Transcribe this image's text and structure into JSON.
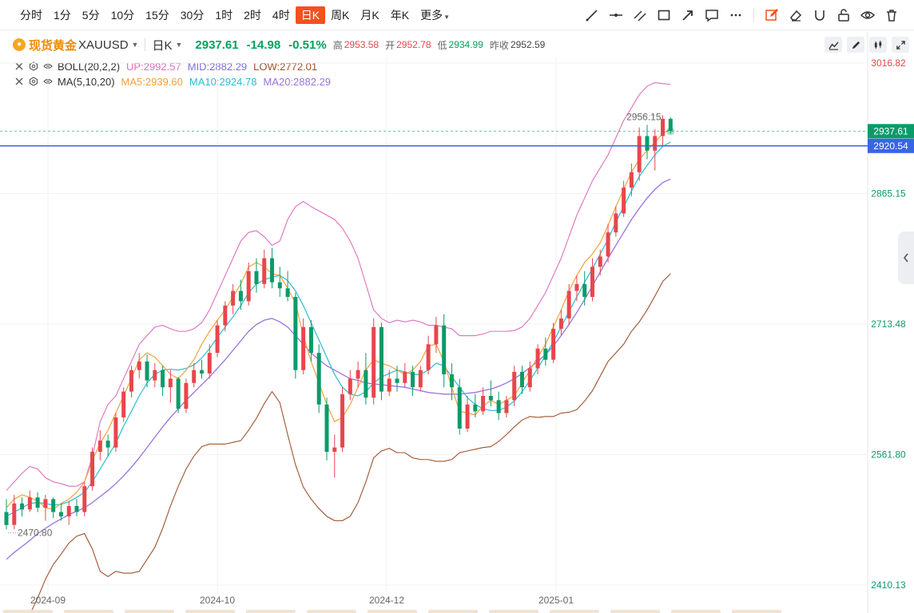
{
  "toolbar": {
    "periods": [
      "分时",
      "1分",
      "5分",
      "10分",
      "15分",
      "30分",
      "1时",
      "2时",
      "4时",
      "日K",
      "周K",
      "月K",
      "年K"
    ],
    "active_period": "日K",
    "more_label": "更多",
    "accent": "#f4511e",
    "tools": [
      "line-draw-icon",
      "horizontal-line-icon",
      "parallel-lines-icon",
      "rectangle-icon",
      "arrow-icon",
      "comment-icon",
      "more-dots-icon",
      "pencil-edit-icon",
      "eraser-icon",
      "magnet-icon",
      "unlock-icon",
      "eye-icon",
      "trash-icon"
    ]
  },
  "symbol": {
    "name": "现货黄金",
    "code": "XAUUSD",
    "period": "日K",
    "price": "2937.61",
    "change": "-14.98",
    "change_pct": "-0.51%",
    "high_label": "高",
    "high": "2953.58",
    "open_label": "开",
    "open": "2952.78",
    "low_label": "低",
    "low": "2934.99",
    "prev_close_label": "昨收",
    "prev_close": "2952.59"
  },
  "indicators": {
    "boll": {
      "name": "BOLL(20,2,2)",
      "up": "UP:2992.57",
      "mid": "MID:2882.29",
      "low": "LOW:2772.01",
      "color_up": "#dd6fc1",
      "color_mid": "#7b6fd8",
      "color_low": "#a0522d"
    },
    "ma": {
      "name": "MA(5,10,20)",
      "ma5": "MA5:2939.60",
      "ma10": "MA10:2924.78",
      "ma20": "MA20:2882.29",
      "color_ma5": "#f5a13c",
      "color_ma10": "#2bbcd4",
      "color_ma20": "#9b72e0"
    }
  },
  "chart_data": {
    "type": "candlestick",
    "price_axis_ticks": [
      "3016.82",
      "2865.15",
      "2713.48",
      "2561.80",
      "2410.13"
    ],
    "time_axis_ticks": [
      "2024-09",
      "2024-10",
      "2024-12",
      "2025-01"
    ],
    "ylim": [
      2410.13,
      3016.82
    ],
    "last_price": "2937.61",
    "marked_line": "2920.54",
    "max_label": "2956.15",
    "min_label": "2470.80",
    "colors": {
      "up": "#e8464c",
      "down": "#0a9b69",
      "last_price_bg": "#0a9b69",
      "marked_line": "#3a64e8"
    },
    "ma5": [
      2500,
      2510,
      2515,
      2512,
      2508,
      2500,
      2498,
      2505,
      2510,
      2518,
      2530,
      2555,
      2575,
      2590,
      2610,
      2630,
      2650,
      2672,
      2680,
      2675,
      2665,
      2655,
      2650,
      2660,
      2672,
      2690,
      2705,
      2718,
      2730,
      2745,
      2760,
      2780,
      2785,
      2780,
      2772,
      2770,
      2755,
      2738,
      2700,
      2670,
      2645,
      2620,
      2600,
      2605,
      2620,
      2640,
      2660,
      2672,
      2668,
      2665,
      2660,
      2655,
      2660,
      2670,
      2688,
      2690,
      2670,
      2640,
      2612,
      2610,
      2608,
      2618,
      2625,
      2620,
      2625,
      2630,
      2645,
      2660,
      2675,
      2690,
      2710,
      2730,
      2752,
      2770,
      2785,
      2795,
      2808,
      2828,
      2850,
      2870,
      2890,
      2905,
      2915,
      2925,
      2935,
      2940
    ],
    "ma10": [
      2490,
      2495,
      2500,
      2505,
      2506,
      2505,
      2503,
      2504,
      2507,
      2512,
      2518,
      2530,
      2545,
      2560,
      2575,
      2595,
      2612,
      2630,
      2645,
      2655,
      2660,
      2661,
      2660,
      2662,
      2666,
      2674,
      2685,
      2698,
      2710,
      2722,
      2735,
      2750,
      2760,
      2765,
      2768,
      2770,
      2764,
      2752,
      2735,
      2715,
      2695,
      2675,
      2655,
      2640,
      2632,
      2630,
      2635,
      2645,
      2652,
      2656,
      2660,
      2658,
      2655,
      2655,
      2660,
      2668,
      2665,
      2652,
      2640,
      2628,
      2620,
      2615,
      2613,
      2613,
      2617,
      2624,
      2635,
      2648,
      2662,
      2677,
      2693,
      2710,
      2728,
      2745,
      2762,
      2778,
      2795,
      2812,
      2832,
      2850,
      2868,
      2885,
      2898,
      2910,
      2920,
      2925
    ],
    "ma20": [
      2440,
      2448,
      2455,
      2462,
      2470,
      2476,
      2482,
      2487,
      2492,
      2496,
      2500,
      2506,
      2513,
      2520,
      2528,
      2537,
      2547,
      2558,
      2570,
      2582,
      2594,
      2605,
      2615,
      2625,
      2634,
      2643,
      2652,
      2662,
      2672,
      2683,
      2694,
      2705,
      2713,
      2718,
      2720,
      2716,
      2710,
      2700,
      2690,
      2680,
      2672,
      2665,
      2660,
      2655,
      2650,
      2648,
      2645,
      2644,
      2643,
      2642,
      2641,
      2640,
      2638,
      2636,
      2634,
      2633,
      2632,
      2632,
      2632,
      2633,
      2634,
      2636,
      2638,
      2641,
      2645,
      2650,
      2656,
      2663,
      2670,
      2678,
      2688,
      2700,
      2713,
      2727,
      2742,
      2758,
      2774,
      2790,
      2805,
      2820,
      2835,
      2848,
      2860,
      2870,
      2878,
      2882
    ],
    "boll_up": [
      2520,
      2530,
      2540,
      2548,
      2545,
      2535,
      2530,
      2528,
      2525,
      2525,
      2530,
      2560,
      2600,
      2620,
      2630,
      2650,
      2670,
      2690,
      2700,
      2710,
      2712,
      2708,
      2705,
      2705,
      2708,
      2715,
      2730,
      2750,
      2770,
      2790,
      2810,
      2820,
      2822,
      2815,
      2805,
      2810,
      2835,
      2850,
      2856,
      2850,
      2845,
      2840,
      2835,
      2825,
      2810,
      2790,
      2760,
      2730,
      2720,
      2715,
      2718,
      2716,
      2718,
      2716,
      2712,
      2712,
      2710,
      2708,
      2700,
      2700,
      2700,
      2702,
      2705,
      2705,
      2705,
      2706,
      2710,
      2720,
      2735,
      2750,
      2770,
      2790,
      2815,
      2840,
      2860,
      2880,
      2895,
      2910,
      2930,
      2950,
      2965,
      2980,
      2990,
      2994,
      2993,
      2992
    ],
    "boll_low": [
      2360,
      2366,
      2370,
      2376,
      2395,
      2417,
      2434,
      2446,
      2459,
      2467,
      2470,
      2452,
      2426,
      2420,
      2426,
      2424,
      2424,
      2426,
      2440,
      2454,
      2476,
      2502,
      2525,
      2545,
      2560,
      2571,
      2574,
      2574,
      2574,
      2576,
      2578,
      2590,
      2604,
      2621,
      2635,
      2622,
      2585,
      2550,
      2524,
      2510,
      2499,
      2490,
      2485,
      2485,
      2490,
      2506,
      2530,
      2558,
      2566,
      2569,
      2564,
      2564,
      2558,
      2556,
      2556,
      2554,
      2554,
      2556,
      2564,
      2566,
      2568,
      2570,
      2571,
      2577,
      2585,
      2594,
      2602,
      2606,
      2605,
      2606,
      2606,
      2610,
      2611,
      2614,
      2624,
      2636,
      2653,
      2670,
      2680,
      2690,
      2705,
      2716,
      2730,
      2746,
      2763,
      2772
    ],
    "candles": [
      {
        "o": 2495,
        "h": 2510,
        "l": 2475,
        "c": 2480
      },
      {
        "o": 2480,
        "h": 2515,
        "l": 2475,
        "c": 2505
      },
      {
        "o": 2505,
        "h": 2512,
        "l": 2490,
        "c": 2498
      },
      {
        "o": 2498,
        "h": 2520,
        "l": 2495,
        "c": 2512
      },
      {
        "o": 2512,
        "h": 2518,
        "l": 2495,
        "c": 2500
      },
      {
        "o": 2500,
        "h": 2515,
        "l": 2485,
        "c": 2510
      },
      {
        "o": 2510,
        "h": 2512,
        "l": 2488,
        "c": 2495
      },
      {
        "o": 2495,
        "h": 2505,
        "l": 2485,
        "c": 2490
      },
      {
        "o": 2490,
        "h": 2508,
        "l": 2480,
        "c": 2502
      },
      {
        "o": 2502,
        "h": 2510,
        "l": 2490,
        "c": 2495
      },
      {
        "o": 2495,
        "h": 2530,
        "l": 2490,
        "c": 2525
      },
      {
        "o": 2525,
        "h": 2570,
        "l": 2520,
        "c": 2565
      },
      {
        "o": 2565,
        "h": 2590,
        "l": 2555,
        "c": 2578
      },
      {
        "o": 2578,
        "h": 2585,
        "l": 2560,
        "c": 2570
      },
      {
        "o": 2570,
        "h": 2610,
        "l": 2565,
        "c": 2605
      },
      {
        "o": 2605,
        "h": 2640,
        "l": 2600,
        "c": 2635
      },
      {
        "o": 2635,
        "h": 2665,
        "l": 2628,
        "c": 2660
      },
      {
        "o": 2660,
        "h": 2680,
        "l": 2650,
        "c": 2670
      },
      {
        "o": 2670,
        "h": 2678,
        "l": 2640,
        "c": 2648
      },
      {
        "o": 2648,
        "h": 2668,
        "l": 2640,
        "c": 2660
      },
      {
        "o": 2660,
        "h": 2665,
        "l": 2630,
        "c": 2640
      },
      {
        "o": 2640,
        "h": 2660,
        "l": 2622,
        "c": 2650
      },
      {
        "o": 2650,
        "h": 2652,
        "l": 2610,
        "c": 2615
      },
      {
        "o": 2615,
        "h": 2650,
        "l": 2610,
        "c": 2645
      },
      {
        "o": 2645,
        "h": 2668,
        "l": 2640,
        "c": 2660
      },
      {
        "o": 2660,
        "h": 2672,
        "l": 2650,
        "c": 2656
      },
      {
        "o": 2656,
        "h": 2690,
        "l": 2650,
        "c": 2680
      },
      {
        "o": 2680,
        "h": 2718,
        "l": 2675,
        "c": 2712
      },
      {
        "o": 2712,
        "h": 2740,
        "l": 2705,
        "c": 2735
      },
      {
        "o": 2735,
        "h": 2760,
        "l": 2725,
        "c": 2752
      },
      {
        "o": 2752,
        "h": 2765,
        "l": 2730,
        "c": 2740
      },
      {
        "o": 2740,
        "h": 2785,
        "l": 2735,
        "c": 2775
      },
      {
        "o": 2775,
        "h": 2790,
        "l": 2750,
        "c": 2760
      },
      {
        "o": 2760,
        "h": 2800,
        "l": 2755,
        "c": 2790
      },
      {
        "o": 2790,
        "h": 2802,
        "l": 2755,
        "c": 2762
      },
      {
        "o": 2762,
        "h": 2780,
        "l": 2745,
        "c": 2755
      },
      {
        "o": 2755,
        "h": 2775,
        "l": 2740,
        "c": 2745
      },
      {
        "o": 2745,
        "h": 2750,
        "l": 2650,
        "c": 2660
      },
      {
        "o": 2660,
        "h": 2720,
        "l": 2655,
        "c": 2710
      },
      {
        "o": 2710,
        "h": 2718,
        "l": 2670,
        "c": 2680
      },
      {
        "o": 2680,
        "h": 2690,
        "l": 2610,
        "c": 2620
      },
      {
        "o": 2620,
        "h": 2628,
        "l": 2555,
        "c": 2565
      },
      {
        "o": 2565,
        "h": 2585,
        "l": 2535,
        "c": 2570
      },
      {
        "o": 2570,
        "h": 2640,
        "l": 2565,
        "c": 2632
      },
      {
        "o": 2632,
        "h": 2660,
        "l": 2625,
        "c": 2650
      },
      {
        "o": 2650,
        "h": 2670,
        "l": 2640,
        "c": 2660
      },
      {
        "o": 2660,
        "h": 2680,
        "l": 2620,
        "c": 2628
      },
      {
        "o": 2628,
        "h": 2720,
        "l": 2620,
        "c": 2710
      },
      {
        "o": 2710,
        "h": 2715,
        "l": 2625,
        "c": 2635
      },
      {
        "o": 2635,
        "h": 2660,
        "l": 2630,
        "c": 2650
      },
      {
        "o": 2650,
        "h": 2665,
        "l": 2635,
        "c": 2645
      },
      {
        "o": 2645,
        "h": 2668,
        "l": 2640,
        "c": 2658
      },
      {
        "o": 2658,
        "h": 2665,
        "l": 2630,
        "c": 2640
      },
      {
        "o": 2640,
        "h": 2665,
        "l": 2635,
        "c": 2660
      },
      {
        "o": 2660,
        "h": 2700,
        "l": 2655,
        "c": 2690
      },
      {
        "o": 2690,
        "h": 2722,
        "l": 2680,
        "c": 2712
      },
      {
        "o": 2712,
        "h": 2725,
        "l": 2640,
        "c": 2655
      },
      {
        "o": 2655,
        "h": 2668,
        "l": 2625,
        "c": 2640
      },
      {
        "o": 2640,
        "h": 2650,
        "l": 2585,
        "c": 2592
      },
      {
        "o": 2592,
        "h": 2630,
        "l": 2588,
        "c": 2620
      },
      {
        "o": 2620,
        "h": 2632,
        "l": 2605,
        "c": 2612
      },
      {
        "o": 2612,
        "h": 2640,
        "l": 2608,
        "c": 2630
      },
      {
        "o": 2630,
        "h": 2648,
        "l": 2618,
        "c": 2625
      },
      {
        "o": 2625,
        "h": 2635,
        "l": 2602,
        "c": 2610
      },
      {
        "o": 2610,
        "h": 2630,
        "l": 2605,
        "c": 2625
      },
      {
        "o": 2625,
        "h": 2665,
        "l": 2618,
        "c": 2658
      },
      {
        "o": 2658,
        "h": 2665,
        "l": 2632,
        "c": 2640
      },
      {
        "o": 2640,
        "h": 2670,
        "l": 2635,
        "c": 2662
      },
      {
        "o": 2662,
        "h": 2690,
        "l": 2655,
        "c": 2685
      },
      {
        "o": 2685,
        "h": 2698,
        "l": 2665,
        "c": 2672
      },
      {
        "o": 2672,
        "h": 2715,
        "l": 2668,
        "c": 2708
      },
      {
        "o": 2708,
        "h": 2730,
        "l": 2700,
        "c": 2720
      },
      {
        "o": 2720,
        "h": 2760,
        "l": 2712,
        "c": 2752
      },
      {
        "o": 2752,
        "h": 2770,
        "l": 2740,
        "c": 2760
      },
      {
        "o": 2760,
        "h": 2775,
        "l": 2735,
        "c": 2745
      },
      {
        "o": 2745,
        "h": 2790,
        "l": 2740,
        "c": 2780
      },
      {
        "o": 2780,
        "h": 2800,
        "l": 2770,
        "c": 2792
      },
      {
        "o": 2792,
        "h": 2830,
        "l": 2785,
        "c": 2820
      },
      {
        "o": 2820,
        "h": 2850,
        "l": 2815,
        "c": 2842
      },
      {
        "o": 2842,
        "h": 2880,
        "l": 2838,
        "c": 2872
      },
      {
        "o": 2872,
        "h": 2900,
        "l": 2862,
        "c": 2890
      },
      {
        "o": 2890,
        "h": 2942,
        "l": 2880,
        "c": 2932
      },
      {
        "o": 2932,
        "h": 2945,
        "l": 2905,
        "c": 2915
      },
      {
        "o": 2915,
        "h": 2940,
        "l": 2892,
        "c": 2932
      },
      {
        "o": 2932,
        "h": 2956,
        "l": 2920,
        "c": 2952
      },
      {
        "o": 2952,
        "h": 2954,
        "l": 2935,
        "c": 2938
      }
    ]
  }
}
